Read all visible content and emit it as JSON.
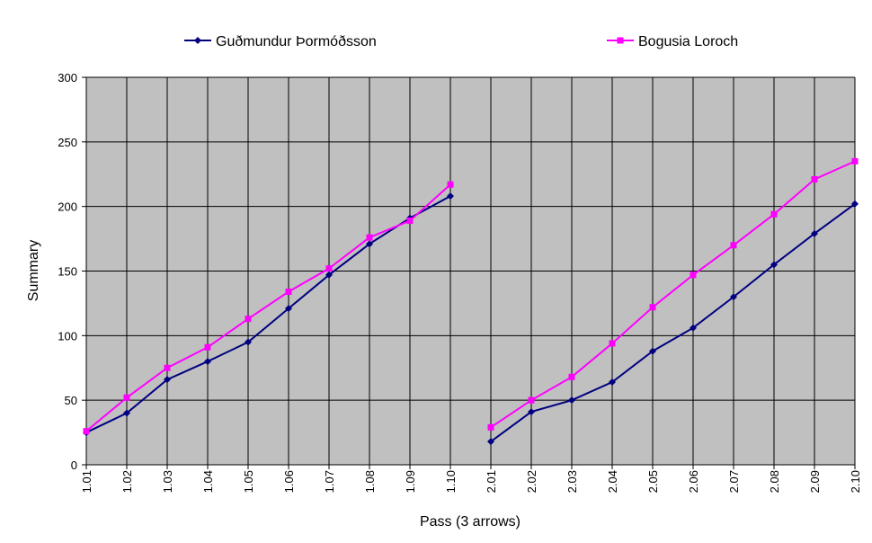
{
  "chart_data": {
    "type": "line",
    "x_label": "Pass (3 arrows)",
    "y_label": "Summary",
    "categories": [
      "1.01",
      "1.02",
      "1.03",
      "1.04",
      "1.05",
      "1.06",
      "1.07",
      "1.08",
      "1.09",
      "1.10",
      "2.01",
      "2.02",
      "2.03",
      "2.04",
      "2.05",
      "2.06",
      "2.07",
      "2.08",
      "2.09",
      "2.10"
    ],
    "series": [
      {
        "name": "Guðmundur Þormóðsson",
        "color": "#000080",
        "marker": "diamond",
        "values": [
          25,
          40,
          66,
          80,
          95,
          121,
          147,
          171,
          191,
          208,
          18,
          41,
          50,
          64,
          88,
          106,
          130,
          155,
          179,
          202
        ]
      },
      {
        "name": "Bogusia Loroch",
        "color": "#ff00ff",
        "marker": "square",
        "values": [
          26,
          52,
          75,
          91,
          113,
          134,
          152,
          176,
          189,
          217,
          29,
          50,
          68,
          94,
          122,
          147,
          170,
          194,
          221,
          235
        ]
      }
    ],
    "ylim": [
      0,
      300
    ],
    "yticks": [
      0,
      50,
      100,
      150,
      200,
      250,
      300
    ],
    "grid": true,
    "legend": "top",
    "plot_background": "#c0c0c0"
  }
}
